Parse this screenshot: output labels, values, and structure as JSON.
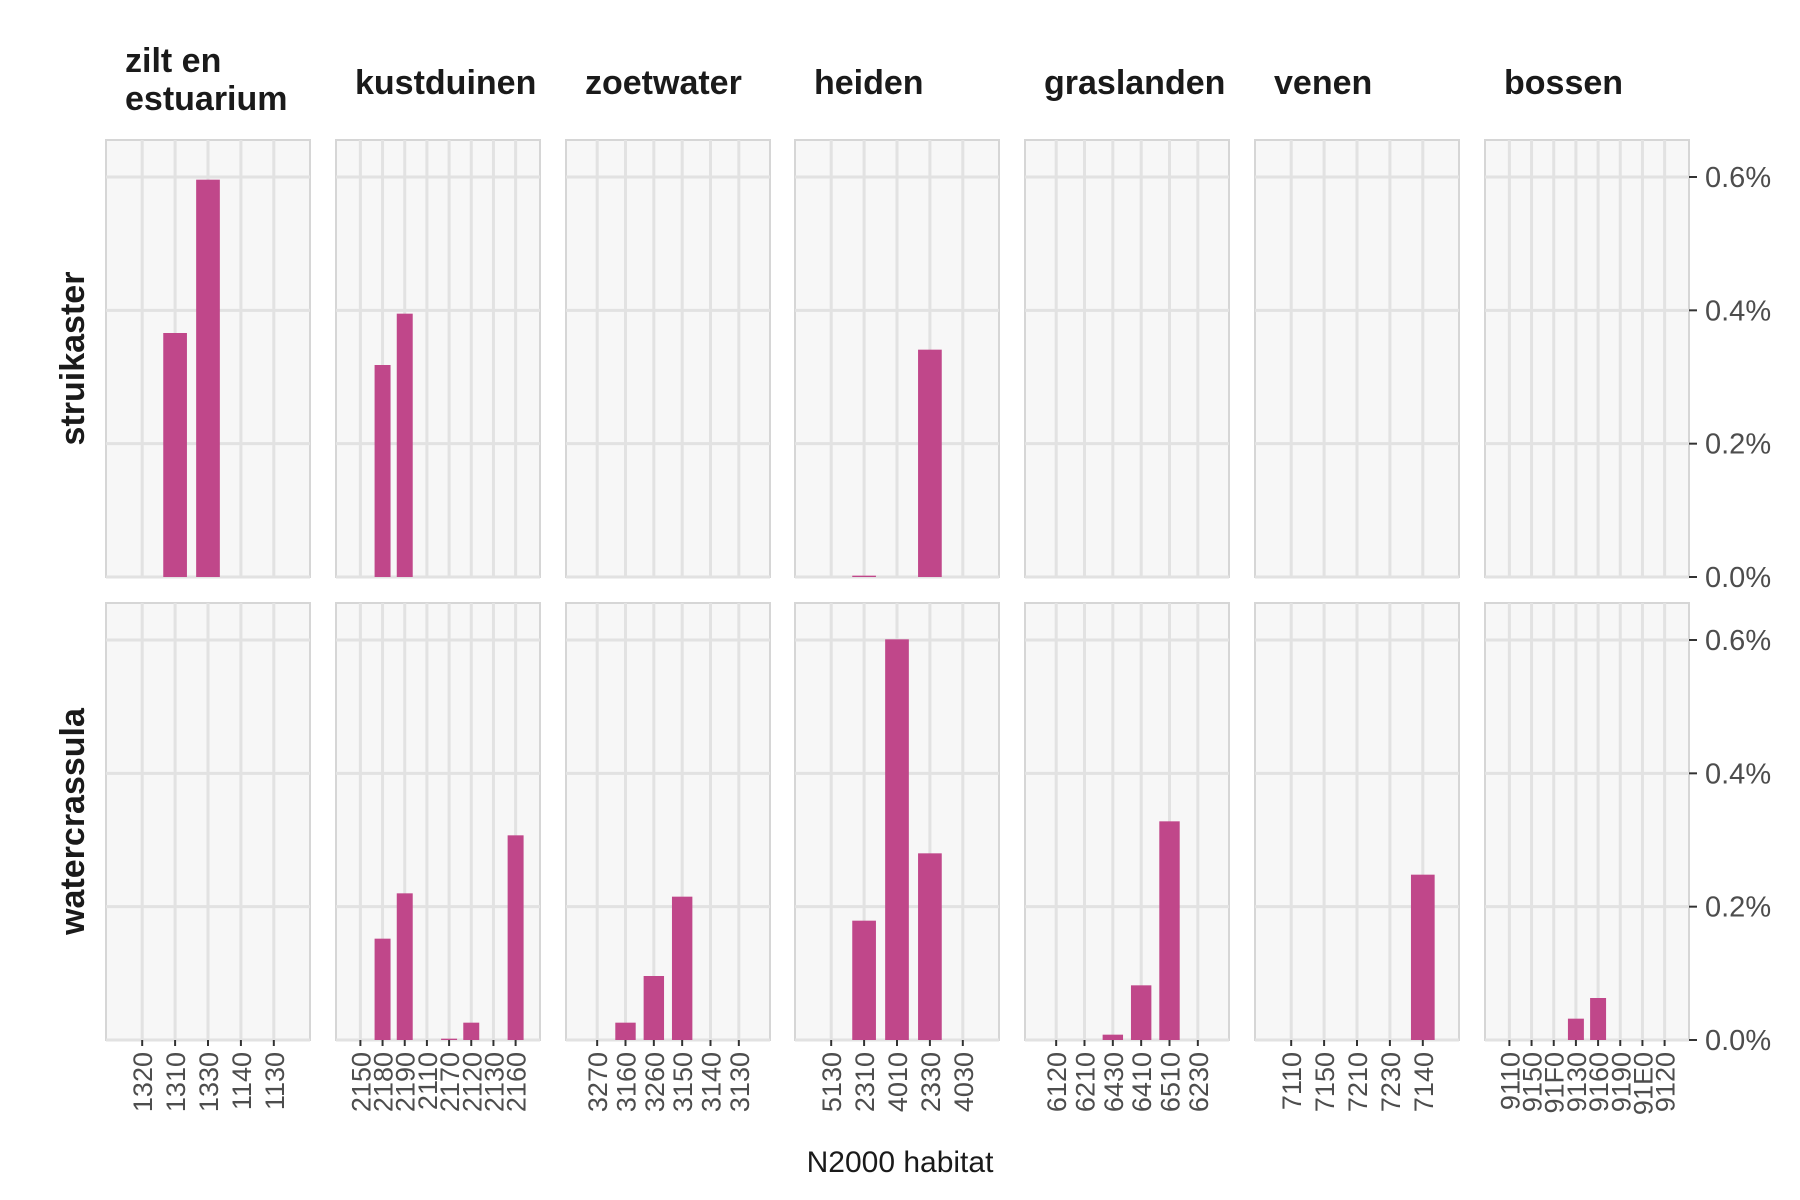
{
  "chart_data": {
    "type": "bar",
    "xlabel": "N2000 habitat",
    "ylim": [
      0,
      0.0063
    ],
    "yticks": [
      0,
      0.002,
      0.004,
      0.006
    ],
    "ytick_labels": [
      "0.0%",
      "0.2%",
      "0.4%",
      "0.6%"
    ],
    "bar_color": "#c0478a",
    "grid": true,
    "rows": [
      "struikaster",
      "watercrassula"
    ],
    "columns": [
      {
        "name": "zilt en\nestuarium",
        "categories": [
          "1320",
          "1310",
          "1330",
          "1140",
          "1130"
        ],
        "values": {
          "struikaster": [
            0,
            0.00366,
            0.00596,
            0,
            0
          ],
          "watercrassula": [
            0,
            0,
            0,
            0,
            0
          ]
        }
      },
      {
        "name": "kustduinen",
        "categories": [
          "2150",
          "2180",
          "2190",
          "2110",
          "2170",
          "2120",
          "2130",
          "2160"
        ],
        "values": {
          "struikaster": [
            0,
            0.00318,
            0.00395,
            0,
            0,
            0,
            0,
            0
          ],
          "watercrassula": [
            0,
            0.00152,
            0.0022,
            0,
            2e-05,
            0.00026,
            0,
            0.00307
          ]
        }
      },
      {
        "name": "zoetwater",
        "categories": [
          "3270",
          "3160",
          "3260",
          "3150",
          "3140",
          "3130"
        ],
        "values": {
          "struikaster": [
            0,
            0,
            0,
            0,
            0,
            0
          ],
          "watercrassula": [
            0,
            0.00026,
            0.00096,
            0.00215,
            0,
            0
          ]
        }
      },
      {
        "name": "heiden",
        "categories": [
          "5130",
          "2310",
          "4010",
          "2330",
          "4030"
        ],
        "values": {
          "struikaster": [
            0,
            2e-05,
            0,
            0.00341,
            0
          ],
          "watercrassula": [
            0,
            0.00179,
            0.00601,
            0.0028,
            0
          ]
        }
      },
      {
        "name": "graslanden",
        "categories": [
          "6120",
          "6210",
          "6430",
          "6410",
          "6510",
          "6230"
        ],
        "values": {
          "struikaster": [
            0,
            0,
            0,
            0,
            0,
            0
          ],
          "watercrassula": [
            0,
            0,
            8e-05,
            0.00082,
            0.00328,
            0
          ]
        }
      },
      {
        "name": "venen",
        "categories": [
          "7110",
          "7150",
          "7210",
          "7230",
          "7140"
        ],
        "values": {
          "struikaster": [
            0,
            0,
            0,
            0,
            0
          ],
          "watercrassula": [
            0,
            0,
            0,
            0,
            0.00248
          ]
        }
      },
      {
        "name": "bossen",
        "categories": [
          "9110",
          "9150",
          "91F0",
          "9130",
          "9160",
          "9190",
          "91E0",
          "9120"
        ],
        "values": {
          "struikaster": [
            0,
            0,
            0,
            0,
            0,
            0,
            0,
            0
          ],
          "watercrassula": [
            0,
            0,
            0,
            0.00032,
            0.00063,
            0,
            0,
            0
          ]
        }
      }
    ]
  }
}
